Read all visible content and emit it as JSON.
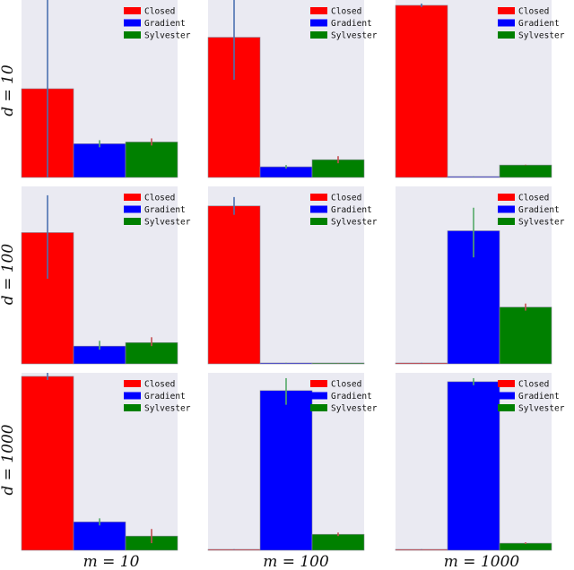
{
  "legend": [
    "Closed",
    "Gradient",
    "Sylvester"
  ],
  "colors": {
    "panel_bg": "#eaeaf2",
    "Closed": "#ff0000",
    "Gradient": "#0000ff",
    "Sylvester": "#008000",
    "bar_edge": "#8a8a9a"
  },
  "row_labels": [
    "d = 10",
    "d = 100",
    "d = 1000"
  ],
  "col_labels": [
    "m = 10",
    "m = 100",
    "m = 1000"
  ],
  "chart_data": {
    "type": "bar",
    "layout": "3x3 grid of bar charts; rows = d, columns = m",
    "categories": [
      "Closed",
      "Gradient",
      "Sylvester"
    ],
    "rows": [
      "d = 10",
      "d = 100",
      "d = 1000"
    ],
    "columns": [
      "m = 10",
      "m = 100",
      "m = 1000"
    ],
    "grid": false,
    "legend_position": "top-right",
    "panels": [
      {
        "row": 0,
        "col": 0,
        "ylim": [
          0,
          1.0
        ],
        "values": [
          0.5,
          0.19,
          0.2
        ],
        "errors": [
          [
            0.0,
            1.0
          ],
          [
            0.17,
            0.21
          ],
          [
            0.18,
            0.22
          ]
        ],
        "error_colors": [
          "#4c72b0",
          "#55a868",
          "#c44e52"
        ]
      },
      {
        "row": 0,
        "col": 1,
        "ylim": [
          0,
          1.0
        ],
        "values": [
          0.79,
          0.06,
          0.1
        ],
        "errors": [
          [
            0.55,
            1.0
          ],
          [
            0.05,
            0.07
          ],
          [
            0.08,
            0.12
          ]
        ],
        "error_colors": [
          "#4c72b0",
          "#55a868",
          "#c44e52"
        ]
      },
      {
        "row": 0,
        "col": 2,
        "ylim": [
          0,
          1.0
        ],
        "values": [
          0.97,
          0.005,
          0.07
        ],
        "errors": [
          [
            0.96,
            0.98
          ],
          [
            0.004,
            0.006
          ],
          [
            0.068,
            0.072
          ]
        ],
        "error_colors": [
          "#4c72b0",
          "#55a868",
          "#c44e52"
        ]
      },
      {
        "row": 1,
        "col": 0,
        "ylim": [
          0,
          1.0
        ],
        "values": [
          0.74,
          0.1,
          0.12
        ],
        "errors": [
          [
            0.48,
            0.95
          ],
          [
            0.08,
            0.13
          ],
          [
            0.1,
            0.15
          ]
        ],
        "error_colors": [
          "#4c72b0",
          "#55a868",
          "#c44e52"
        ]
      },
      {
        "row": 1,
        "col": 1,
        "ylim": [
          0,
          1.0
        ],
        "values": [
          0.89,
          0.005,
          0.003
        ],
        "errors": [
          [
            0.84,
            0.94
          ],
          [
            0.004,
            0.006
          ],
          [
            0.002,
            0.004
          ]
        ],
        "error_colors": [
          "#4c72b0",
          "#55a868",
          "#c44e52"
        ]
      },
      {
        "row": 1,
        "col": 2,
        "ylim": [
          0,
          1.0
        ],
        "values": [
          0.005,
          0.75,
          0.32
        ],
        "errors": [
          [
            0.004,
            0.006
          ],
          [
            0.6,
            0.88
          ],
          [
            0.3,
            0.34
          ]
        ],
        "error_colors": [
          "#4c72b0",
          "#55a868",
          "#c44e52"
        ]
      },
      {
        "row": 2,
        "col": 0,
        "ylim": [
          0,
          1.0
        ],
        "values": [
          0.98,
          0.16,
          0.08
        ],
        "errors": [
          [
            0.96,
            1.0
          ],
          [
            0.14,
            0.18
          ],
          [
            0.04,
            0.12
          ]
        ],
        "error_colors": [
          "#4c72b0",
          "#55a868",
          "#c44e52"
        ]
      },
      {
        "row": 2,
        "col": 1,
        "ylim": [
          0,
          1.0
        ],
        "values": [
          0.005,
          0.9,
          0.09
        ],
        "errors": [
          [
            0.004,
            0.006
          ],
          [
            0.82,
            0.97
          ],
          [
            0.08,
            0.1
          ]
        ],
        "error_colors": [
          "#4c72b0",
          "#55a868",
          "#c44e52"
        ]
      },
      {
        "row": 2,
        "col": 2,
        "ylim": [
          0,
          1.0
        ],
        "values": [
          0.005,
          0.95,
          0.04
        ],
        "errors": [
          [
            0.004,
            0.006
          ],
          [
            0.93,
            0.97
          ],
          [
            0.035,
            0.045
          ]
        ],
        "error_colors": [
          "#4c72b0",
          "#55a868",
          "#c44e52"
        ]
      }
    ]
  }
}
